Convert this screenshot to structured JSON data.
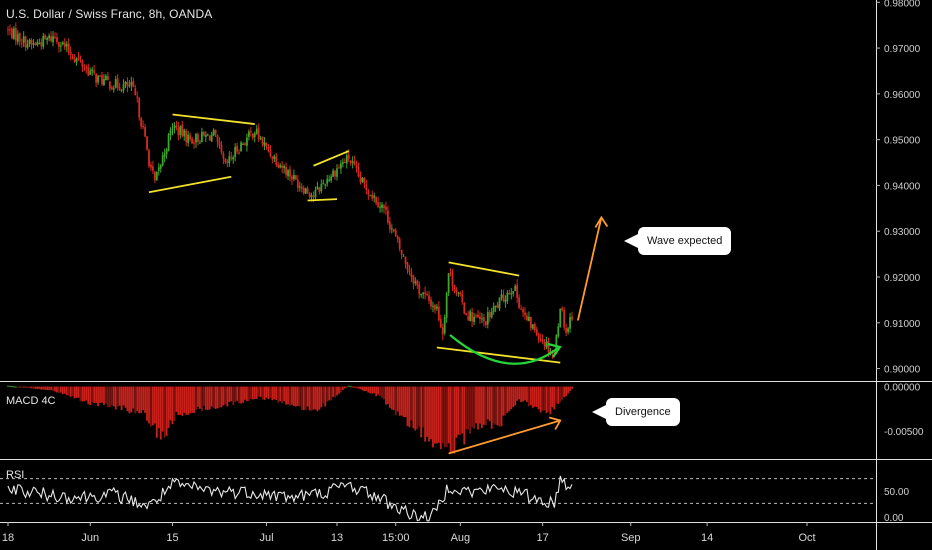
{
  "title": "U.S. Dollar / Swiss Franc, 8h, OANDA",
  "panes": {
    "macd": "MACD 4C",
    "rsi": "RSI"
  },
  "callouts": {
    "wave": "Wave expected",
    "divergence": "Divergence"
  },
  "colors": {
    "up": "#3fa52f",
    "down": "#d42a20",
    "trend": "#f3e12c",
    "arrow": "#ff9a2e",
    "curve": "#25d43a",
    "axis": "#9a9a9a"
  },
  "chart_data": [
    {
      "type": "candlestick",
      "title": "U.S. Dollar / Swiss Franc, 8h, OANDA",
      "price_ticks": [
        "0.98000",
        "0.97000",
        "0.96000",
        "0.95000",
        "0.94000",
        "0.93000",
        "0.92000",
        "0.91000",
        "0.90000"
      ],
      "x_ticks": [
        "18",
        "Jun",
        "15",
        "Jul",
        "13",
        "15:00",
        "Aug",
        "17",
        "Sep",
        "14",
        "Oct"
      ],
      "ylim": [
        0.8975,
        0.9805
      ],
      "close_path": [
        {
          "x": "May 18",
          "y": 0.9738
        },
        {
          "x": "May 22",
          "y": 0.9706
        },
        {
          "x": "May 26",
          "y": 0.9725
        },
        {
          "x": "May 29",
          "y": 0.9684
        },
        {
          "x": "Jun 2",
          "y": 0.9635
        },
        {
          "x": "Jun 5",
          "y": 0.962
        },
        {
          "x": "Jun 8",
          "y": 0.9615
        },
        {
          "x": "Jun 9",
          "y": 0.958
        },
        {
          "x": "Jun 10",
          "y": 0.952
        },
        {
          "x": "Jun 11",
          "y": 0.9455
        },
        {
          "x": "Jun 12",
          "y": 0.9405
        },
        {
          "x": "Jun 15",
          "y": 0.953
        },
        {
          "x": "Jun 18",
          "y": 0.95
        },
        {
          "x": "Jun 22",
          "y": 0.951
        },
        {
          "x": "Jun 24",
          "y": 0.944
        },
        {
          "x": "Jun 26",
          "y": 0.948
        },
        {
          "x": "Jun 29",
          "y": 0.952
        },
        {
          "x": "Jul 1",
          "y": 0.948
        },
        {
          "x": "Jul 6",
          "y": 0.941
        },
        {
          "x": "Jul 9",
          "y": 0.9378
        },
        {
          "x": "Jul 11",
          "y": 0.941
        },
        {
          "x": "Jul 14",
          "y": 0.945
        },
        {
          "x": "Jul 15",
          "y": 0.946
        },
        {
          "x": "Jul 17",
          "y": 0.941
        },
        {
          "x": "Jul 21",
          "y": 0.935
        },
        {
          "x": "Jul 24",
          "y": 0.925
        },
        {
          "x": "Jul 27",
          "y": 0.917
        },
        {
          "x": "Jul 30",
          "y": 0.913
        },
        {
          "x": "Jul 31",
          "y": 0.908
        },
        {
          "x": "Aug 1",
          "y": 0.921
        },
        {
          "x": "Aug 4",
          "y": 0.912
        },
        {
          "x": "Aug 7",
          "y": 0.91
        },
        {
          "x": "Aug 10",
          "y": 0.915
        },
        {
          "x": "Aug 12",
          "y": 0.918
        },
        {
          "x": "Aug 14",
          "y": 0.911
        },
        {
          "x": "Aug 16",
          "y": 0.908
        },
        {
          "x": "Aug 19",
          "y": 0.903
        },
        {
          "x": "Aug 20",
          "y": 0.914
        },
        {
          "x": "Aug 21",
          "y": 0.908
        },
        {
          "x": "Aug 22",
          "y": 0.912
        }
      ],
      "trendlines": [
        {
          "from": {
            "x": "Jun 11",
            "y": 0.9385
          },
          "to": {
            "x": "Jun 25",
            "y": 0.9419
          }
        },
        {
          "from": {
            "x": "Jun 15",
            "y": 0.9555
          },
          "to": {
            "x": "Jun 29",
            "y": 0.9534
          }
        },
        {
          "from": {
            "x": "Jul 8",
            "y": 0.9367
          },
          "to": {
            "x": "Jul 13",
            "y": 0.937
          }
        },
        {
          "from": {
            "x": "Jul 9",
            "y": 0.9443
          },
          "to": {
            "x": "Jul 15",
            "y": 0.9475
          }
        },
        {
          "from": {
            "x": "Aug 1",
            "y": 0.9232
          },
          "to": {
            "x": "Aug 13",
            "y": 0.9203
          }
        },
        {
          "from": {
            "x": "Jul 30",
            "y": 0.9046
          },
          "to": {
            "x": "Aug 20",
            "y": 0.9013
          }
        }
      ],
      "arrow": {
        "from": {
          "x": "Aug 23",
          "y": 0.9105
        },
        "to": {
          "x": "Aug 27",
          "y": 0.933
        }
      },
      "callout": "Wave expected"
    },
    {
      "type": "histogram",
      "title": "MACD 4C",
      "y_ticks": [
        "0.00000",
        "-0.00500"
      ],
      "ylim": [
        -0.008,
        0.0004
      ],
      "profile": [
        {
          "x": "May 18",
          "y": 0.0001
        },
        {
          "x": "May 26",
          "y": -0.0005
        },
        {
          "x": "Jun 1",
          "y": -0.0018
        },
        {
          "x": "Jun 5",
          "y": -0.0022
        },
        {
          "x": "Jun 10",
          "y": -0.003
        },
        {
          "x": "Jun 13",
          "y": -0.0058
        },
        {
          "x": "Jun 16",
          "y": -0.003
        },
        {
          "x": "Jun 23",
          "y": -0.0022
        },
        {
          "x": "Jun 30",
          "y": -0.0012
        },
        {
          "x": "Jul 6",
          "y": -0.0022
        },
        {
          "x": "Jul 10",
          "y": -0.0025
        },
        {
          "x": "Jul 15",
          "y": 0.0001
        },
        {
          "x": "Jul 20",
          "y": -0.001
        },
        {
          "x": "Jul 25",
          "y": -0.004
        },
        {
          "x": "Jul 30",
          "y": -0.0065
        },
        {
          "x": "Aug 1",
          "y": -0.0072
        },
        {
          "x": "Aug 6",
          "y": -0.0045
        },
        {
          "x": "Aug 10",
          "y": -0.004
        },
        {
          "x": "Aug 13",
          "y": -0.0015
        },
        {
          "x": "Aug 18",
          "y": -0.003
        },
        {
          "x": "Aug 22",
          "y": -0.0003
        }
      ],
      "arrow": {
        "from": {
          "x": "Aug 1",
          "y": -0.0075
        },
        "to": {
          "x": "Aug 20",
          "y": -0.0038
        }
      },
      "callout": "Divergence"
    },
    {
      "type": "line",
      "title": "RSI",
      "y_ticks": [
        "50.00",
        "0.00"
      ],
      "ylim": [
        0,
        100
      ],
      "levels": [
        30,
        70
      ],
      "series": [
        {
          "values": [
            {
              "x": "May 18",
              "y": 55
            },
            {
              "x": "May 24",
              "y": 45
            },
            {
              "x": "May 30",
              "y": 40
            },
            {
              "x": "Jun 5",
              "y": 45
            },
            {
              "x": "Jun 11",
              "y": 25
            },
            {
              "x": "Jun 15",
              "y": 60
            },
            {
              "x": "Jun 22",
              "y": 50
            },
            {
              "x": "Jun 29",
              "y": 48
            },
            {
              "x": "Jul 5",
              "y": 40
            },
            {
              "x": "Jul 10",
              "y": 46
            },
            {
              "x": "Jul 15",
              "y": 60
            },
            {
              "x": "Jul 20",
              "y": 40
            },
            {
              "x": "Jul 25",
              "y": 15
            },
            {
              "x": "Jul 29",
              "y": 5
            },
            {
              "x": "Aug 1",
              "y": 58
            },
            {
              "x": "Aug 5",
              "y": 48
            },
            {
              "x": "Aug 10",
              "y": 55
            },
            {
              "x": "Aug 15",
              "y": 40
            },
            {
              "x": "Aug 19",
              "y": 30
            },
            {
              "x": "Aug 20",
              "y": 70
            },
            {
              "x": "Aug 22",
              "y": 55
            }
          ]
        }
      ]
    }
  ]
}
